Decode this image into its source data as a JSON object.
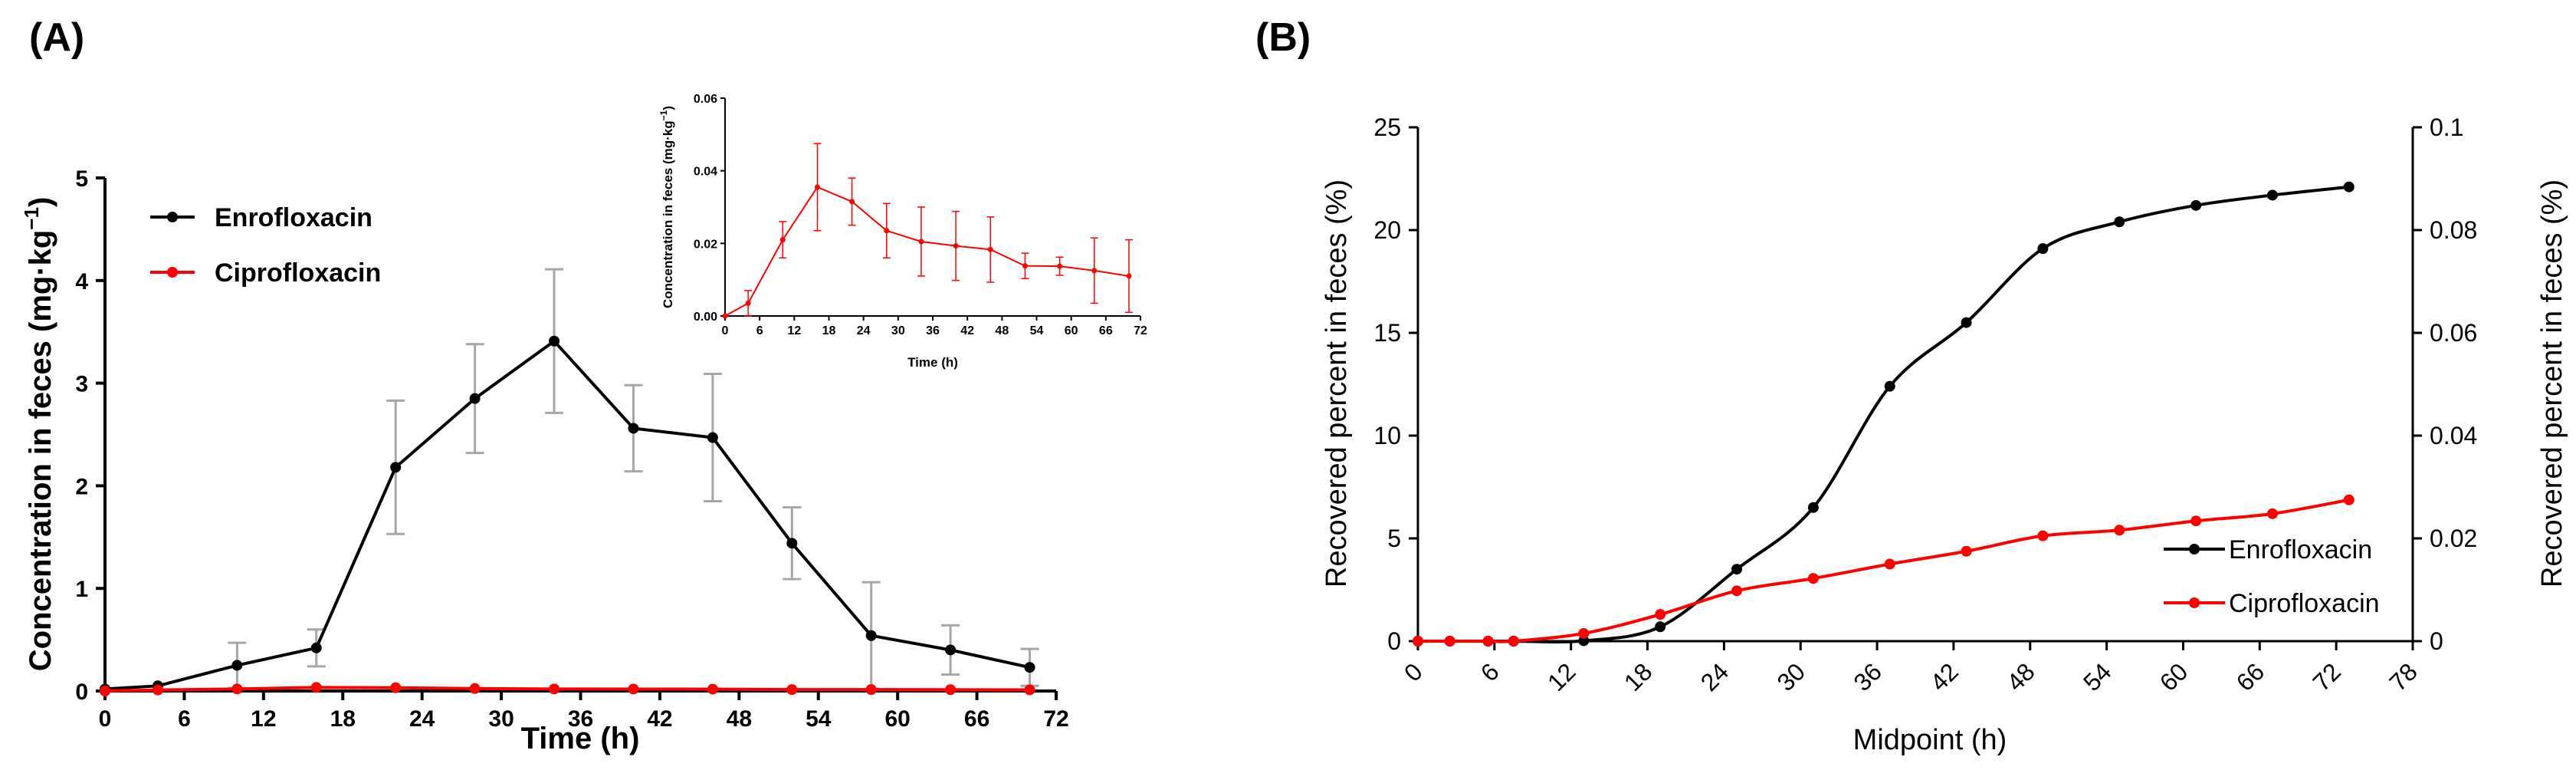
{
  "panels": {
    "a_label": "(A)",
    "b_label": "(B)"
  },
  "colors": {
    "enrofloxacin": "#000000",
    "ciprofloxacin": "#ff0000",
    "error_bar": "#a6a6a6"
  },
  "chart_data": [
    {
      "id": "A",
      "type": "line",
      "title": "",
      "xlabel": "Time (h)",
      "ylabel": "Concentration in feces (mg·kg",
      "ylabel_sup": "−1",
      "ylabel_close": ")",
      "xlim": [
        0,
        72
      ],
      "ylim": [
        0,
        5
      ],
      "xticks": [
        "0",
        "6",
        "12",
        "18",
        "24",
        "30",
        "36",
        "42",
        "48",
        "54",
        "60",
        "66",
        "72"
      ],
      "yticks": [
        "0",
        "1",
        "2",
        "3",
        "4",
        "5"
      ],
      "legend_position": "top-left",
      "series": [
        {
          "name": "Enrofloxacin",
          "color": "#000000",
          "x": [
            0,
            4,
            10,
            16,
            22,
            28,
            34,
            40,
            46,
            52,
            58,
            64,
            70
          ],
          "values": [
            0.02,
            0.05,
            0.25,
            0.42,
            2.18,
            2.85,
            3.41,
            2.56,
            2.47,
            1.44,
            0.54,
            0.4,
            0.23
          ],
          "error": [
            0,
            0,
            0.22,
            0.18,
            0.65,
            0.53,
            0.7,
            0.42,
            0.62,
            0.35,
            0.52,
            0.24,
            0.18
          ]
        },
        {
          "name": "Ciprofloxacin",
          "color": "#ff0000",
          "x": [
            0,
            4,
            10,
            16,
            22,
            28,
            34,
            40,
            46,
            52,
            58,
            64,
            70
          ],
          "values": [
            0,
            0.01,
            0.02,
            0.035,
            0.032,
            0.024,
            0.02,
            0.019,
            0.018,
            0.014,
            0.014,
            0.013,
            0.011
          ],
          "error": [
            0,
            0,
            0,
            0,
            0,
            0,
            0,
            0,
            0,
            0,
            0,
            0,
            0
          ]
        }
      ]
    },
    {
      "id": "A-inset",
      "type": "line",
      "xlabel": "Time (h)",
      "ylabel": "Concentration in feces (mg·kg",
      "ylabel_sup": "−1",
      "ylabel_close": ")",
      "xlim": [
        0,
        72
      ],
      "ylim": [
        0,
        0.06
      ],
      "xticks": [
        "0",
        "6",
        "12",
        "18",
        "24",
        "30",
        "36",
        "42",
        "48",
        "54",
        "60",
        "66",
        "72"
      ],
      "yticks": [
        "0.00",
        "0.02",
        "0.04",
        "0.06"
      ],
      "series": [
        {
          "name": "Ciprofloxacin",
          "color": "#ff0000",
          "x": [
            0,
            4,
            10,
            16,
            22,
            28,
            34,
            40,
            46,
            52,
            58,
            64,
            70
          ],
          "values": [
            0,
            0.0035,
            0.021,
            0.0355,
            0.0315,
            0.0235,
            0.0205,
            0.0193,
            0.0183,
            0.0138,
            0.0137,
            0.0125,
            0.011
          ],
          "error": [
            0,
            0.0035,
            0.005,
            0.012,
            0.0065,
            0.0075,
            0.0095,
            0.0095,
            0.009,
            0.0035,
            0.0025,
            0.009,
            0.01
          ]
        }
      ]
    },
    {
      "id": "B",
      "type": "line",
      "title": "",
      "xlabel": "Midpoint (h)",
      "ylabel_left": "Recovered percent in feces (%)",
      "ylabel_right": "Recovered percent in feces (%)",
      "xlim": [
        0,
        78
      ],
      "ylim_left": [
        0,
        25
      ],
      "ylim_right": [
        0,
        0.1
      ],
      "xticks": [
        "0",
        "6",
        "12",
        "18",
        "24",
        "30",
        "36",
        "42",
        "48",
        "54",
        "60",
        "66",
        "72",
        "78"
      ],
      "yticks_left": [
        "0",
        "5",
        "10",
        "15",
        "20",
        "25"
      ],
      "yticks_right": [
        "0",
        "0.02",
        "0.04",
        "0.06",
        "0.08",
        "0.1"
      ],
      "legend_position": "bottom-right",
      "series": [
        {
          "name": "Enrofloxacin",
          "color": "#000000",
          "axis": "left",
          "x": [
            0,
            2.5,
            5.5,
            7.5,
            13,
            19,
            25,
            31,
            37,
            43,
            49,
            55,
            61,
            67,
            73
          ],
          "values": [
            0,
            0,
            0,
            0,
            0.02,
            0.7,
            3.5,
            6.5,
            12.4,
            15.5,
            19.1,
            20.4,
            21.2,
            21.7,
            22.1
          ]
        },
        {
          "name": "Ciprofloxacin",
          "color": "#ff0000",
          "axis": "right",
          "x": [
            0,
            2.5,
            5.5,
            7.5,
            13,
            19,
            25,
            31,
            37,
            43,
            49,
            55,
            61,
            67,
            73
          ],
          "values": [
            0,
            0,
            0,
            0,
            0.0015,
            0.0052,
            0.0098,
            0.0122,
            0.015,
            0.0175,
            0.0205,
            0.0216,
            0.0234,
            0.0248,
            0.0275
          ]
        }
      ]
    }
  ]
}
